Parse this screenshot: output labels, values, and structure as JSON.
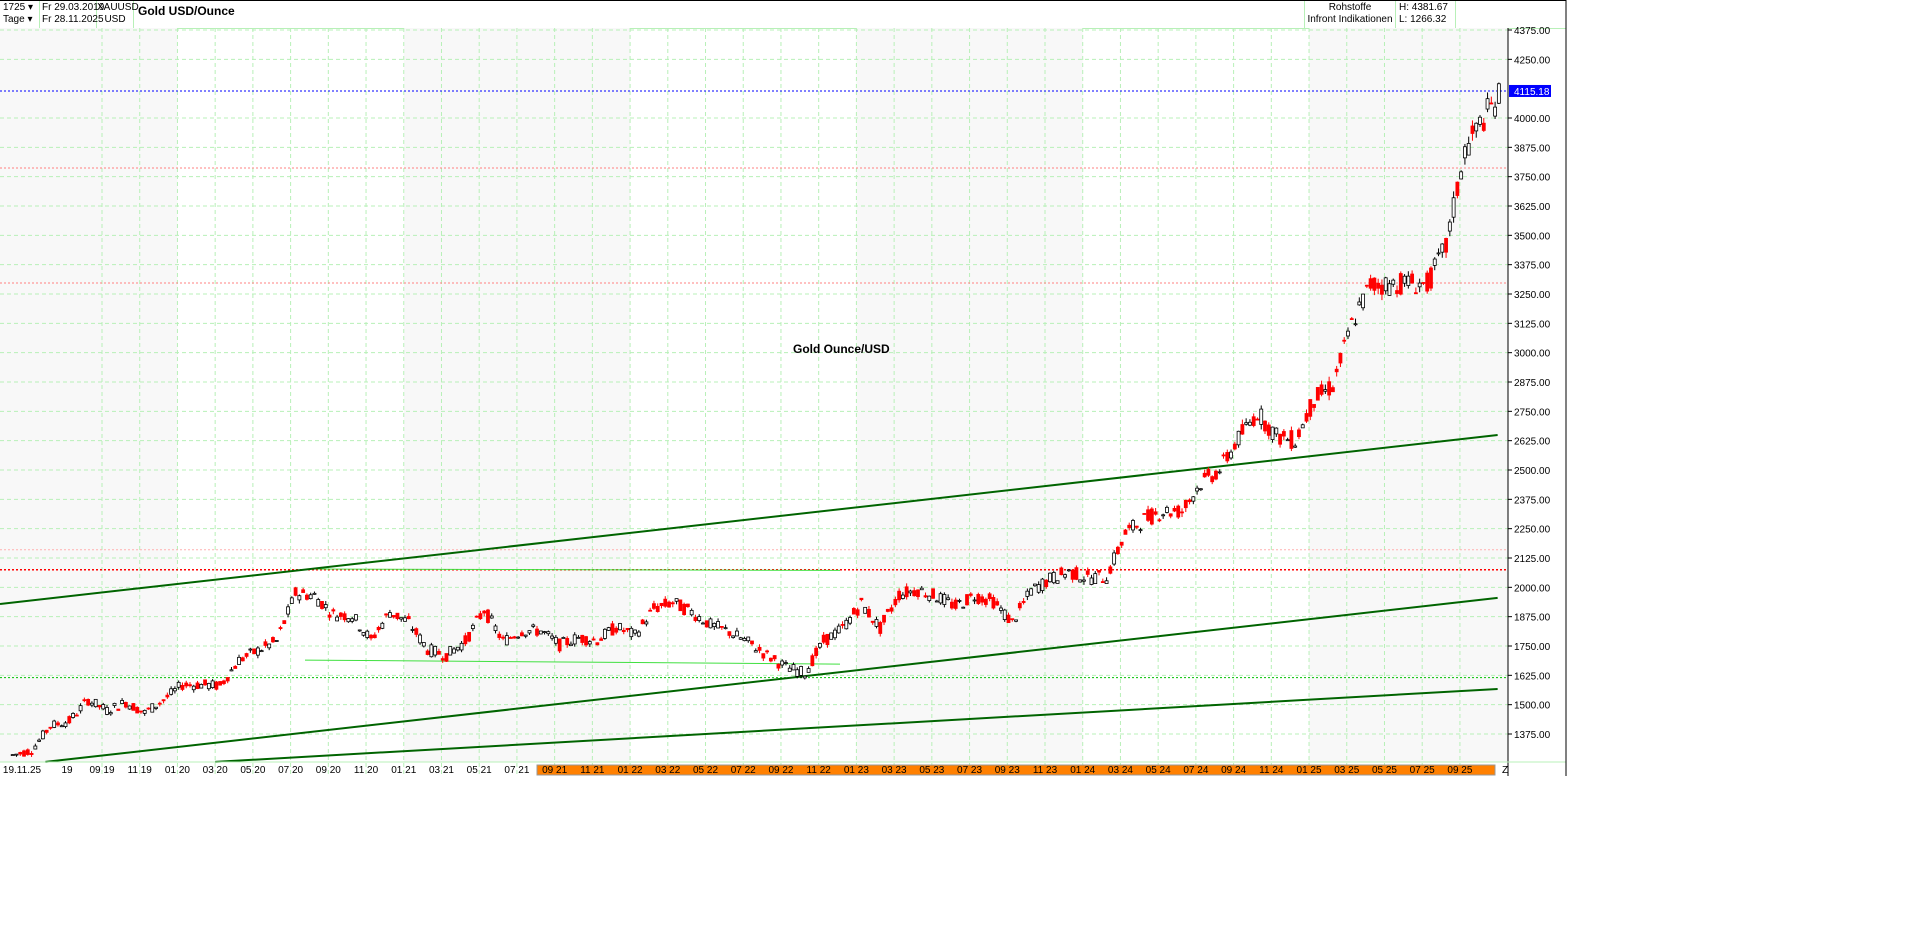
{
  "header": {
    "period": "1725",
    "unit": "Tage",
    "date_from": "Fr 29.03.2019",
    "date_to": "Fr 28.11.2025",
    "symbol": "XAUUSD",
    "currency": "USD",
    "title": "Gold USD/Ounce",
    "category": "Rohstoffe",
    "source": "Infront Indikationen",
    "high": "H: 4381.67",
    "low": "L: 1266.32"
  },
  "chart_data": {
    "type": "line",
    "title": "Gold Ounce/USD",
    "ylim": [
      1266,
      4400
    ],
    "y_ticks": [
      "4375.00",
      "4250.00",
      "4000.00",
      "3875.00",
      "3750.00",
      "3625.00",
      "3500.00",
      "3375.00",
      "3250.00",
      "3125.00",
      "3000.00",
      "2875.00",
      "2750.00",
      "2625.00",
      "2500.00",
      "2375.00",
      "2250.00",
      "2125.00",
      "2000.00",
      "1875.00",
      "1750.00",
      "1625.00",
      "1500.00",
      "1375.00"
    ],
    "x_ticks": [
      "19.11.25",
      "19",
      "09 19",
      "11 19",
      "01 20",
      "03 20",
      "05 20",
      "07 20",
      "09 20",
      "11 20",
      "01 21",
      "03 21",
      "05 21",
      "07 21",
      "09 21",
      "11 21",
      "01 22",
      "03 22",
      "05 22",
      "07 22",
      "09 22",
      "11 22",
      "01 23",
      "03 23",
      "05 23",
      "07 23",
      "09 23",
      "11 23",
      "01 24",
      "03 24",
      "05 24",
      "07 24",
      "09 24",
      "11 24",
      "01 25",
      "03 25",
      "05 25",
      "07 25",
      "09 25",
      "Z"
    ],
    "last_price": "4115.18",
    "months": [
      "2019-04",
      "2019-05",
      "2019-06",
      "2019-07",
      "2019-08",
      "2019-09",
      "2019-10",
      "2019-11",
      "2019-12",
      "2020-01",
      "2020-02",
      "2020-03",
      "2020-04",
      "2020-05",
      "2020-06",
      "2020-07",
      "2020-08",
      "2020-09",
      "2020-10",
      "2020-11",
      "2020-12",
      "2021-01",
      "2021-02",
      "2021-03",
      "2021-04",
      "2021-05",
      "2021-06",
      "2021-07",
      "2021-08",
      "2021-09",
      "2021-10",
      "2021-11",
      "2021-12",
      "2022-01",
      "2022-02",
      "2022-03",
      "2022-04",
      "2022-05",
      "2022-06",
      "2022-07",
      "2022-08",
      "2022-09",
      "2022-10",
      "2022-11",
      "2022-12",
      "2023-01",
      "2023-02",
      "2023-03",
      "2023-04",
      "2023-05",
      "2023-06",
      "2023-07",
      "2023-08",
      "2023-09",
      "2023-10",
      "2023-11",
      "2023-12",
      "2024-01",
      "2024-02",
      "2024-03",
      "2024-04",
      "2024-05",
      "2024-06",
      "2024-07",
      "2024-08",
      "2024-09",
      "2024-10",
      "2024-11",
      "2024-12",
      "2025-01",
      "2025-02",
      "2025-03",
      "2025-04",
      "2025-05",
      "2025-06",
      "2025-07",
      "2025-08",
      "2025-09",
      "2025-10",
      "2025-11"
    ],
    "values": [
      1285,
      1305,
      1410,
      1430,
      1520,
      1475,
      1510,
      1465,
      1520,
      1585,
      1585,
      1580,
      1690,
      1730,
      1770,
      1975,
      1965,
      1885,
      1880,
      1775,
      1895,
      1850,
      1735,
      1710,
      1770,
      1905,
      1770,
      1815,
      1815,
      1755,
      1785,
      1775,
      1830,
      1795,
      1910,
      1935,
      1895,
      1840,
      1810,
      1765,
      1710,
      1660,
      1635,
      1770,
      1825,
      1930,
      1825,
      1970,
      1990,
      1960,
      1920,
      1965,
      1940,
      1850,
      1985,
      2035,
      2065,
      2040,
      2045,
      2230,
      2290,
      2325,
      2325,
      2445,
      2500,
      2635,
      2745,
      2645,
      2625,
      2800,
      2860,
      3120,
      3290,
      3290,
      3300,
      3290,
      3450,
      3860,
      4000,
      4115
    ],
    "trendlines": [
      {
        "from": [
          "2019-03",
          1929
        ],
        "to": [
          "2025-11",
          2649
        ],
        "color": "#006400"
      },
      {
        "from": [
          "2019-06",
          1256
        ],
        "to": [
          "2025-11",
          1955
        ],
        "color": "#006400"
      },
      {
        "from": [
          "2020-03",
          1256
        ],
        "to": [
          "2025-11",
          1567
        ],
        "color": "#006400"
      }
    ],
    "horizontal_lines": [
      {
        "price": 4115,
        "color": "#0000ff"
      },
      {
        "price": 3787,
        "color": "#ff8080"
      },
      {
        "price": 3297,
        "color": "#ff8080"
      },
      {
        "price": 2160,
        "color": "#ffb0b0"
      },
      {
        "price": 2075,
        "color": "#ff0000"
      },
      {
        "price": 1615,
        "color": "#00c000"
      }
    ],
    "colors": {
      "up": "#000000",
      "down": "#ff0000",
      "grid": "#b8f0b8",
      "last_price_bg": "#0000ff",
      "time_band": "#ff8000"
    }
  }
}
